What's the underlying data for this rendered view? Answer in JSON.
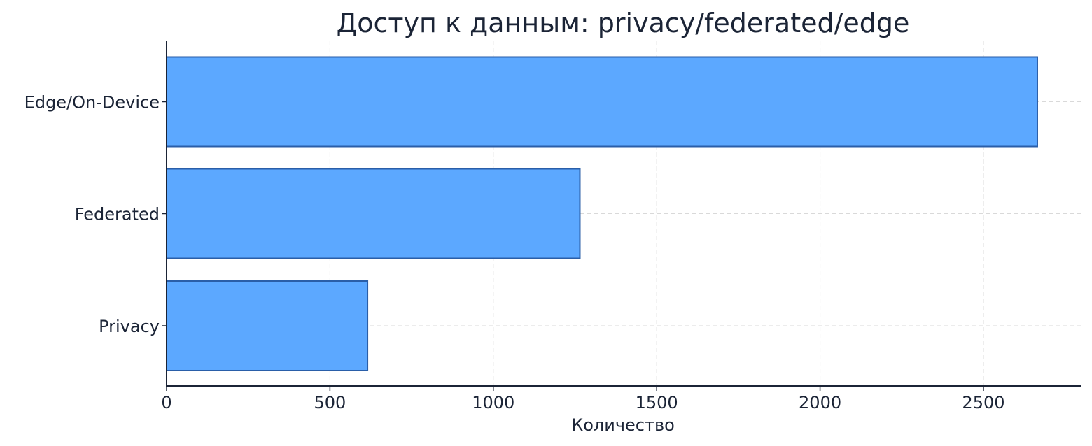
{
  "chart_data": {
    "type": "bar",
    "orientation": "horizontal",
    "title": "Доступ к данным: privacy/federated/edge",
    "xlabel": "Количество",
    "ylabel": "",
    "categories": [
      "Privacy",
      "Federated",
      "Edge/On-Device"
    ],
    "values": [
      615,
      1265,
      2665
    ],
    "xlim": [
      0,
      2800
    ],
    "xticks": [
      0,
      500,
      1000,
      1500,
      2000,
      2500
    ],
    "grid": true,
    "bar_color": "#5ca8ff",
    "bar_edge_color": "#2a5ea8"
  }
}
